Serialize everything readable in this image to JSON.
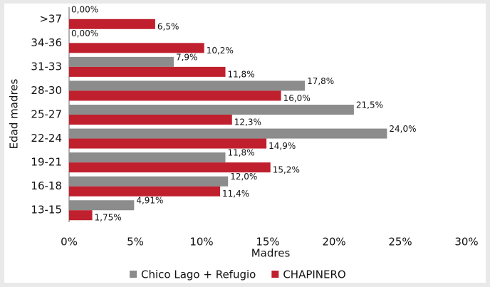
{
  "chart_data": {
    "type": "hbar",
    "xlabel": "Madres",
    "ylabel": "Edad madres",
    "categories": [
      ">37",
      "34-36",
      "31-33",
      "28-30",
      "25-27",
      "22-24",
      "19-21",
      "16-18",
      "13-15"
    ],
    "series": [
      {
        "name": "Chico Lago + Refugio",
        "color": "#8c8c8c",
        "values": [
          0,
          0,
          7.9,
          17.8,
          21.5,
          24.0,
          11.8,
          12.0,
          4.91
        ],
        "value_labels": [
          "0,00%",
          "0,00%",
          "7,9%",
          "17,8%",
          "21,5%",
          "24,0%",
          "11,8%",
          "12,0%",
          "4,91%"
        ]
      },
      {
        "name": "CHAPINERO",
        "color": "#c0202e",
        "values": [
          6.5,
          10.2,
          11.8,
          16.0,
          12.3,
          14.9,
          15.2,
          11.4,
          1.75
        ],
        "value_labels": [
          "6,5%",
          "10,2%",
          "11,8%",
          "16,0%",
          "12,3%",
          "14,9%",
          "15,2%",
          "11,4%",
          "1,75%"
        ]
      }
    ],
    "xlim": [
      0,
      30
    ],
    "xticks": [
      {
        "value": 0,
        "label": "0%"
      },
      {
        "value": 5,
        "label": "5%"
      },
      {
        "value": 10,
        "label": "10%"
      },
      {
        "value": 15,
        "label": "15%"
      },
      {
        "value": 20,
        "label": "20%"
      },
      {
        "value": 25,
        "label": "25%"
      },
      {
        "value": 30,
        "label": "30%"
      }
    ],
    "legend": "bottom"
  }
}
